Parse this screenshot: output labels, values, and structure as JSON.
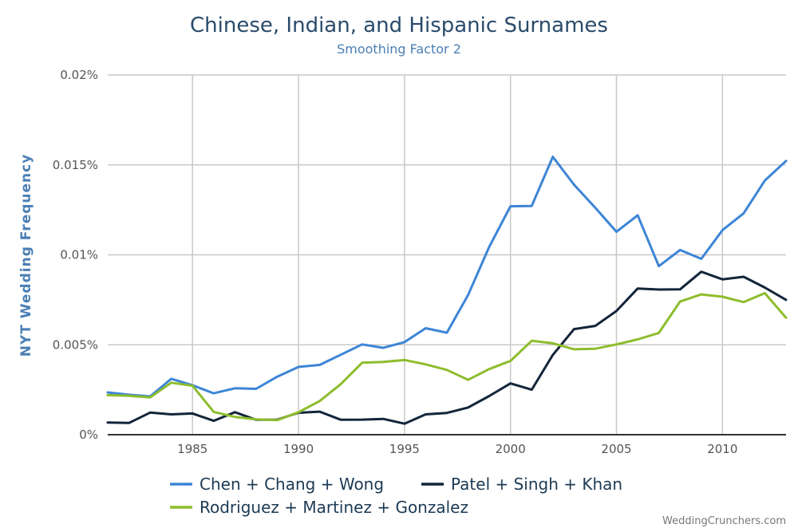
{
  "chart_data": {
    "type": "line",
    "title": "Chinese, Indian, and Hispanic Surnames",
    "subtitle": "Smoothing Factor 2",
    "ylabel": "NYT Wedding Frequency",
    "xlabel": "",
    "xlim": [
      1981,
      2013
    ],
    "ylim": [
      0,
      0.02
    ],
    "x_ticks": [
      1985,
      1990,
      1995,
      2000,
      2005,
      2010
    ],
    "x_tick_labels": [
      "1985",
      "1990",
      "1995",
      "2000",
      "2005",
      "2010"
    ],
    "y_ticks": [
      0,
      0.005,
      0.01,
      0.015,
      0.02
    ],
    "y_tick_labels": [
      "0%",
      "0.005%",
      "0.01%",
      "0.015%",
      "0.02%"
    ],
    "grid": true,
    "legend_position": "bottom",
    "x": [
      1981,
      1982,
      1983,
      1984,
      1985,
      1986,
      1987,
      1988,
      1989,
      1990,
      1991,
      1992,
      1993,
      1994,
      1995,
      1996,
      1997,
      1998,
      1999,
      2000,
      2001,
      2002,
      2003,
      2004,
      2005,
      2006,
      2007,
      2008,
      2009,
      2010,
      2011,
      2012,
      2013
    ],
    "series": [
      {
        "name": "Chen + Chang + Wong",
        "color": "#3d85d6",
        "values": [
          0.00235,
          0.00222,
          0.00213,
          0.00311,
          0.00275,
          0.0023,
          0.00258,
          0.00255,
          0.00323,
          0.00377,
          0.00388,
          0.00445,
          0.00502,
          0.00483,
          0.00515,
          0.00592,
          0.00567,
          0.00777,
          0.01045,
          0.0127,
          0.01272,
          0.01545,
          0.0139,
          0.01262,
          0.01128,
          0.0122,
          0.00937,
          0.01027,
          0.00978,
          0.01137,
          0.01231,
          0.01413,
          0.01522
        ]
      },
      {
        "name": "Patel + Singh + Khan",
        "color": "#13253a",
        "values": [
          0.00068,
          0.00065,
          0.00123,
          0.00113,
          0.00118,
          0.00077,
          0.00125,
          0.00083,
          0.00084,
          0.00122,
          0.00128,
          0.00083,
          0.00084,
          0.00088,
          0.00061,
          0.00113,
          0.00121,
          0.00151,
          0.00215,
          0.00285,
          0.0025,
          0.00444,
          0.00587,
          0.00605,
          0.00688,
          0.00813,
          0.00807,
          0.00808,
          0.00906,
          0.00864,
          0.00878,
          0.00818,
          0.0075
        ]
      },
      {
        "name": "Rodriguez + Martinez + Gonzalez",
        "color": "#8dbd2d",
        "values": [
          0.0022,
          0.00216,
          0.00207,
          0.00289,
          0.00272,
          0.00127,
          0.00099,
          0.00085,
          0.00081,
          0.00125,
          0.00187,
          0.00282,
          0.004,
          0.00405,
          0.00415,
          0.00391,
          0.0036,
          0.00305,
          0.00365,
          0.0041,
          0.00522,
          0.00508,
          0.00475,
          0.00478,
          0.00502,
          0.0053,
          0.00566,
          0.0074,
          0.0078,
          0.00767,
          0.00737,
          0.00787,
          0.0065
        ]
      }
    ]
  },
  "credit": "WeddingCrunchers.com"
}
